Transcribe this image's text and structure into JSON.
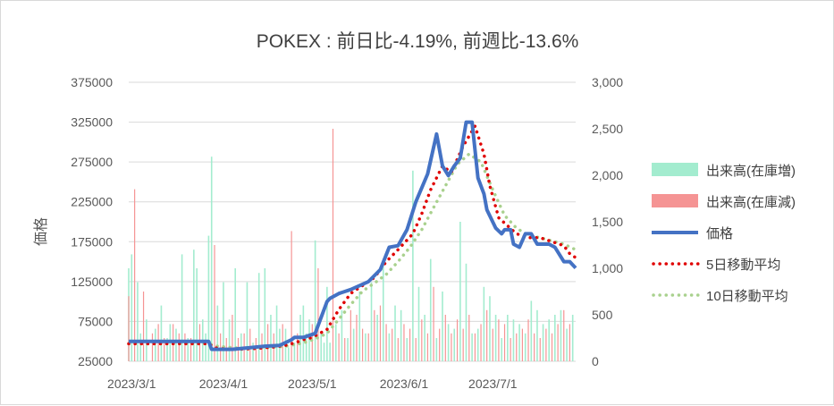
{
  "chart_data": {
    "type": "line",
    "title": "POKEX : 前日比-4.19%, 前週比-13.6%",
    "ylabel": "価格",
    "ylim": [
      25000,
      375000
    ],
    "y_ticks": [
      "375000",
      "325000",
      "275000",
      "225000",
      "175000",
      "125000",
      "75000",
      "25000"
    ],
    "y2lim": [
      0,
      3000
    ],
    "y2_ticks": [
      "3,000",
      "2,500",
      "2,000",
      "1,500",
      "1,000",
      "500",
      "0"
    ],
    "x_ticks": [
      "2023/3/1",
      "2023/4/1",
      "2023/5/1",
      "2023/6/1",
      "2023/7/1"
    ],
    "x_tick_days": [
      0,
      31,
      61,
      92,
      122
    ],
    "date_range_days": [
      -1,
      150
    ],
    "legend_position": "right",
    "grid": "horizontal",
    "colors": {
      "volume_increase": "#a3eccf",
      "volume_decrease": "#f59494",
      "price": "#4472c4",
      "ma5": "#e00000",
      "ma10": "#a9d18e"
    },
    "legend": [
      {
        "label": "出来高(在庫増)",
        "style": "bar",
        "color": "#a3eccf"
      },
      {
        "label": "出来高(在庫減)",
        "style": "bar",
        "color": "#f59494"
      },
      {
        "label": "価格",
        "style": "line",
        "color": "#4472c4"
      },
      {
        "label": "5日移動平均",
        "style": "dot",
        "color": "#e00000"
      },
      {
        "label": "10日移動平均",
        "style": "dot",
        "color": "#a9d18e"
      }
    ],
    "series": [
      {
        "name": "価格",
        "x": [
          -1,
          26,
          27,
          30,
          34,
          40,
          45,
          50,
          54,
          55,
          58,
          62,
          66,
          67,
          70,
          74,
          80,
          84,
          87,
          90,
          93,
          96,
          100,
          103,
          105,
          107,
          109,
          111,
          113,
          115,
          117,
          119,
          120,
          123,
          125,
          126,
          128,
          129,
          131,
          133,
          135,
          137,
          139,
          141,
          143,
          146,
          148,
          150
        ],
        "y": [
          50000,
          50000,
          40000,
          40000,
          40000,
          42000,
          44000,
          45000,
          52000,
          55000,
          55000,
          60000,
          100000,
          104000,
          110000,
          115000,
          125000,
          140000,
          168000,
          170000,
          190000,
          225000,
          260000,
          310000,
          270000,
          258000,
          270000,
          280000,
          325000,
          325000,
          255000,
          235000,
          215000,
          192000,
          185000,
          190000,
          190000,
          172000,
          168000,
          185000,
          185000,
          172000,
          172000,
          172000,
          168000,
          150000,
          150000,
          142000
        ]
      },
      {
        "name": "5日移動平均",
        "x": [
          -1,
          26,
          28,
          32,
          36,
          42,
          48,
          52,
          55,
          58,
          61,
          66,
          70,
          74,
          78,
          82,
          86,
          90,
          95,
          98,
          101,
          105,
          108,
          112,
          116,
          119,
          121,
          124,
          127,
          130,
          134,
          138,
          142,
          146,
          148,
          150
        ],
        "y": [
          47000,
          47000,
          42000,
          40000,
          40000,
          41000,
          43000,
          45000,
          48000,
          52000,
          55000,
          65000,
          90000,
          110000,
          120000,
          130000,
          150000,
          165000,
          185000,
          210000,
          240000,
          270000,
          262000,
          295000,
          320000,
          285000,
          245000,
          205000,
          195000,
          185000,
          180000,
          180000,
          175000,
          170000,
          160000,
          155000
        ]
      },
      {
        "name": "10日移動平均",
        "x": [
          -1,
          26,
          29,
          34,
          40,
          46,
          52,
          58,
          62,
          66,
          70,
          74,
          78,
          82,
          86,
          90,
          94,
          98,
          102,
          106,
          110,
          114,
          118,
          122,
          126,
          130,
          134,
          138,
          142,
          146,
          150
        ],
        "y": [
          47000,
          47000,
          44000,
          42000,
          41000,
          42000,
          44000,
          48000,
          53000,
          60000,
          78000,
          96000,
          113000,
          123000,
          134000,
          150000,
          168000,
          190000,
          218000,
          245000,
          272000,
          285000,
          275000,
          240000,
          208000,
          192000,
          183000,
          180000,
          176000,
          172000,
          165000
        ]
      }
    ],
    "volume_increase": {
      "x": [
        -1,
        0,
        2,
        3,
        5,
        8,
        10,
        12,
        13,
        15,
        17,
        19,
        21,
        22,
        24,
        25,
        26,
        27,
        29,
        31,
        33,
        35,
        37,
        39,
        41,
        43,
        45,
        47,
        49,
        50,
        52,
        53,
        55,
        57,
        58,
        59,
        60,
        62,
        64,
        65,
        66,
        67,
        69,
        71,
        73,
        75,
        77,
        79,
        81,
        83,
        85,
        87,
        89,
        91,
        93,
        95,
        97,
        99,
        101,
        103,
        105,
        107,
        109,
        111,
        113,
        115,
        117,
        119,
        121,
        123,
        125,
        127,
        129,
        131,
        133,
        135,
        137,
        139,
        141,
        143,
        145,
        147,
        149
      ],
      "y": [
        1000,
        1150,
        850,
        300,
        450,
        350,
        600,
        250,
        400,
        350,
        1150,
        250,
        1200,
        1000,
        450,
        300,
        1350,
        2200,
        600,
        850,
        450,
        1000,
        300,
        850,
        200,
        950,
        1000,
        500,
        600,
        350,
        350,
        150,
        200,
        500,
        600,
        300,
        450,
        1300,
        300,
        200,
        800,
        200,
        400,
        550,
        250,
        350,
        750,
        300,
        850,
        500,
        1050,
        300,
        600,
        550,
        250,
        2050,
        800,
        500,
        1100,
        250,
        750,
        400,
        350,
        1500,
        1050,
        300,
        350,
        800,
        700,
        500,
        250,
        500,
        450,
        400,
        300,
        650,
        550,
        400,
        450,
        500,
        550,
        350,
        500
      ]
    },
    "volume_decrease": {
      "x": [
        -1,
        1,
        4,
        7,
        9,
        11,
        14,
        16,
        18,
        20,
        23,
        28,
        30,
        32,
        34,
        36,
        38,
        40,
        42,
        44,
        46,
        48,
        51,
        54,
        56,
        61,
        63,
        68,
        70,
        72,
        74,
        76,
        78,
        80,
        82,
        84,
        86,
        88,
        90,
        92,
        94,
        96,
        98,
        100,
        102,
        104,
        106,
        108,
        110,
        112,
        114,
        116,
        118,
        120,
        122,
        124,
        126,
        128,
        130,
        132,
        134,
        136,
        138,
        140,
        142,
        144,
        146,
        148
      ],
      "y": [
        700,
        1850,
        750,
        300,
        400,
        250,
        400,
        300,
        300,
        250,
        400,
        1250,
        300,
        250,
        500,
        250,
        300,
        350,
        250,
        300,
        400,
        300,
        400,
        1400,
        300,
        400,
        1000,
        2500,
        300,
        250,
        550,
        500,
        350,
        300,
        550,
        600,
        400,
        350,
        250,
        400,
        350,
        250,
        450,
        300,
        800,
        350,
        500,
        300,
        450,
        350,
        500,
        300,
        400,
        550,
        350,
        450,
        400,
        250,
        300,
        350,
        450,
        300,
        250,
        350,
        300,
        400,
        550,
        400
      ]
    }
  }
}
